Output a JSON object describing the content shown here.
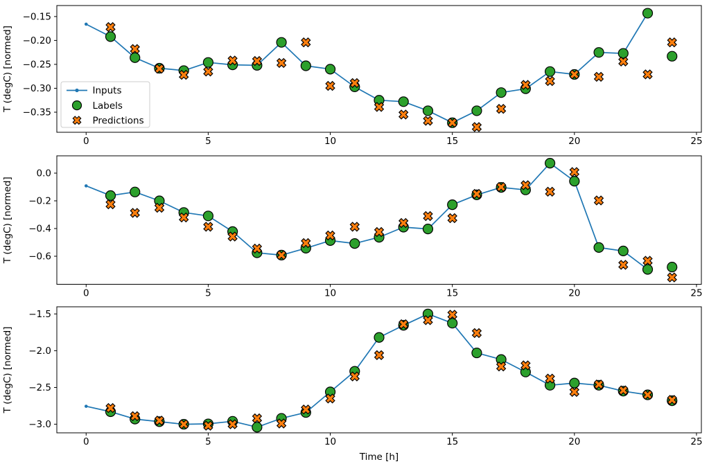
{
  "figure": {
    "background": "#ffffff",
    "xlabel": "Time [h]",
    "ylabel": "T (degC) [normed]",
    "xlim": [
      -1.2,
      25.2
    ],
    "x_tick_values": [
      0,
      5,
      10,
      15,
      20,
      25
    ],
    "x_tick_labels": [
      "0",
      "5",
      "10",
      "15",
      "20",
      "25"
    ],
    "colors": {
      "inputs": "#1f77b4",
      "labels": "#2ca02c",
      "predictions": "#ff7f0e",
      "marker_edge": "#000000",
      "legend_border": "#cccccc"
    },
    "legend": {
      "position": "upper-left-of-subplot-1",
      "items": [
        {
          "label": "Inputs",
          "type": "line",
          "color": "#1f77b4"
        },
        {
          "label": "Labels",
          "type": "circle",
          "color": "#2ca02c"
        },
        {
          "label": "Predictions",
          "type": "x",
          "color": "#ff7f0e"
        }
      ]
    }
  },
  "chart_data": [
    {
      "type": "line",
      "panel": 1,
      "ylabel": "T (degC) [normed]",
      "ylim": [
        -0.392,
        -0.127
      ],
      "y_tick_values": [
        -0.15,
        -0.2,
        -0.25,
        -0.3,
        -0.35
      ],
      "y_tick_labels": [
        "−0.15",
        "−0.20",
        "−0.25",
        "−0.30",
        "−0.35"
      ],
      "series": [
        {
          "name": "Inputs",
          "marker": "line-dot",
          "color": "#1f77b4",
          "x": [
            0,
            1,
            2,
            3,
            4,
            5,
            6,
            7,
            8,
            9,
            10,
            11,
            12,
            13,
            14,
            15,
            16,
            17,
            18,
            19,
            20,
            21,
            22,
            23
          ],
          "y": [
            -0.166,
            -0.192,
            -0.236,
            -0.258,
            -0.263,
            -0.246,
            -0.251,
            -0.252,
            -0.204,
            -0.253,
            -0.26,
            -0.297,
            -0.325,
            -0.328,
            -0.347,
            -0.372,
            -0.347,
            -0.309,
            -0.301,
            -0.265,
            -0.271,
            -0.225,
            -0.227,
            -0.143
          ]
        },
        {
          "name": "Labels",
          "marker": "circle",
          "color": "#2ca02c",
          "x": [
            1,
            2,
            3,
            4,
            5,
            6,
            7,
            8,
            9,
            10,
            11,
            12,
            13,
            14,
            15,
            16,
            17,
            18,
            19,
            20,
            21,
            22,
            23,
            24
          ],
          "y": [
            -0.192,
            -0.236,
            -0.258,
            -0.263,
            -0.246,
            -0.251,
            -0.252,
            -0.204,
            -0.253,
            -0.26,
            -0.297,
            -0.325,
            -0.328,
            -0.347,
            -0.372,
            -0.347,
            -0.309,
            -0.301,
            -0.265,
            -0.271,
            -0.225,
            -0.227,
            -0.143,
            -0.233
          ]
        },
        {
          "name": "Predictions",
          "marker": "x",
          "color": "#ff7f0e",
          "x": [
            1,
            2,
            3,
            4,
            5,
            6,
            7,
            8,
            9,
            10,
            11,
            12,
            13,
            14,
            15,
            16,
            17,
            18,
            19,
            20,
            21,
            22,
            23,
            24
          ],
          "y": [
            -0.172,
            -0.218,
            -0.259,
            -0.272,
            -0.265,
            -0.242,
            -0.243,
            -0.247,
            -0.204,
            -0.295,
            -0.289,
            -0.339,
            -0.355,
            -0.368,
            -0.372,
            -0.381,
            -0.343,
            -0.293,
            -0.285,
            -0.271,
            -0.276,
            -0.244,
            -0.271,
            -0.204
          ]
        }
      ]
    },
    {
      "type": "line",
      "panel": 2,
      "ylabel": "T (degC) [normed]",
      "ylim": [
        -0.8025,
        0.125
      ],
      "y_tick_values": [
        0.0,
        -0.2,
        -0.4,
        -0.6
      ],
      "y_tick_labels": [
        "0.0",
        "−0.2",
        "−0.4",
        "−0.6"
      ],
      "series": [
        {
          "name": "Inputs",
          "marker": "line-dot",
          "color": "#1f77b4",
          "x": [
            0,
            1,
            2,
            3,
            4,
            5,
            6,
            7,
            8,
            9,
            10,
            11,
            12,
            13,
            14,
            15,
            16,
            17,
            18,
            19,
            20,
            21,
            22,
            23
          ],
          "y": [
            -0.092,
            -0.162,
            -0.136,
            -0.2,
            -0.284,
            -0.309,
            -0.422,
            -0.575,
            -0.592,
            -0.542,
            -0.487,
            -0.508,
            -0.463,
            -0.39,
            -0.403,
            -0.228,
            -0.157,
            -0.103,
            -0.121,
            0.072,
            -0.058,
            -0.537,
            -0.562,
            -0.695
          ]
        },
        {
          "name": "Labels",
          "marker": "circle",
          "color": "#2ca02c",
          "x": [
            1,
            2,
            3,
            4,
            5,
            6,
            7,
            8,
            9,
            10,
            11,
            12,
            13,
            14,
            15,
            16,
            17,
            18,
            19,
            20,
            21,
            22,
            23,
            24
          ],
          "y": [
            -0.162,
            -0.136,
            -0.2,
            -0.284,
            -0.309,
            -0.422,
            -0.575,
            -0.592,
            -0.542,
            -0.487,
            -0.508,
            -0.463,
            -0.39,
            -0.403,
            -0.228,
            -0.157,
            -0.103,
            -0.121,
            0.072,
            -0.058,
            -0.537,
            -0.562,
            -0.695,
            -0.678
          ]
        },
        {
          "name": "Predictions",
          "marker": "x",
          "color": "#ff7f0e",
          "x": [
            1,
            2,
            3,
            4,
            5,
            6,
            7,
            8,
            9,
            10,
            11,
            12,
            13,
            14,
            15,
            16,
            17,
            18,
            19,
            20,
            21,
            22,
            23,
            24
          ],
          "y": [
            -0.225,
            -0.287,
            -0.25,
            -0.32,
            -0.387,
            -0.458,
            -0.545,
            -0.592,
            -0.505,
            -0.45,
            -0.387,
            -0.425,
            -0.36,
            -0.31,
            -0.325,
            -0.15,
            -0.1,
            -0.087,
            -0.134,
            0.008,
            -0.197,
            -0.662,
            -0.633,
            -0.753
          ]
        }
      ]
    },
    {
      "type": "line",
      "panel": 3,
      "ylabel": "T (degC) [normed]",
      "ylim": [
        -3.117,
        -1.403
      ],
      "y_tick_values": [
        -1.5,
        -2.0,
        -2.5,
        -3.0
      ],
      "y_tick_labels": [
        "−1.5",
        "−2.0",
        "−2.5",
        "−3.0"
      ],
      "series": [
        {
          "name": "Inputs",
          "marker": "line-dot",
          "color": "#1f77b4",
          "x": [
            0,
            1,
            2,
            3,
            4,
            5,
            6,
            7,
            8,
            9,
            10,
            11,
            12,
            13,
            14,
            15,
            16,
            17,
            18,
            19,
            20,
            21,
            22,
            23
          ],
          "y": [
            -2.756,
            -2.83,
            -2.93,
            -2.965,
            -3.0,
            -2.995,
            -2.96,
            -3.04,
            -2.92,
            -2.84,
            -2.56,
            -2.28,
            -1.82,
            -1.655,
            -1.5,
            -1.626,
            -2.03,
            -2.12,
            -2.29,
            -2.47,
            -2.44,
            -2.47,
            -2.55,
            -2.6
          ]
        },
        {
          "name": "Labels",
          "marker": "circle",
          "color": "#2ca02c",
          "x": [
            1,
            2,
            3,
            4,
            5,
            6,
            7,
            8,
            9,
            10,
            11,
            12,
            13,
            14,
            15,
            16,
            17,
            18,
            19,
            20,
            21,
            22,
            23,
            24
          ],
          "y": [
            -2.83,
            -2.93,
            -2.965,
            -3.0,
            -2.995,
            -2.96,
            -3.04,
            -2.92,
            -2.84,
            -2.56,
            -2.28,
            -1.82,
            -1.655,
            -1.5,
            -1.626,
            -2.03,
            -2.12,
            -2.29,
            -2.47,
            -2.44,
            -2.47,
            -2.55,
            -2.6,
            -2.68
          ]
        },
        {
          "name": "Predictions",
          "marker": "x",
          "color": "#ff7f0e",
          "x": [
            1,
            2,
            3,
            4,
            5,
            6,
            7,
            8,
            9,
            10,
            11,
            12,
            13,
            14,
            15,
            16,
            17,
            18,
            19,
            20,
            21,
            22,
            23,
            24
          ],
          "y": [
            -2.78,
            -2.89,
            -2.95,
            -3.0,
            -3.02,
            -3.0,
            -2.92,
            -2.99,
            -2.8,
            -2.65,
            -2.35,
            -2.06,
            -1.64,
            -1.585,
            -1.51,
            -1.76,
            -2.215,
            -2.2,
            -2.38,
            -2.56,
            -2.46,
            -2.54,
            -2.6,
            -2.67
          ]
        }
      ]
    }
  ]
}
